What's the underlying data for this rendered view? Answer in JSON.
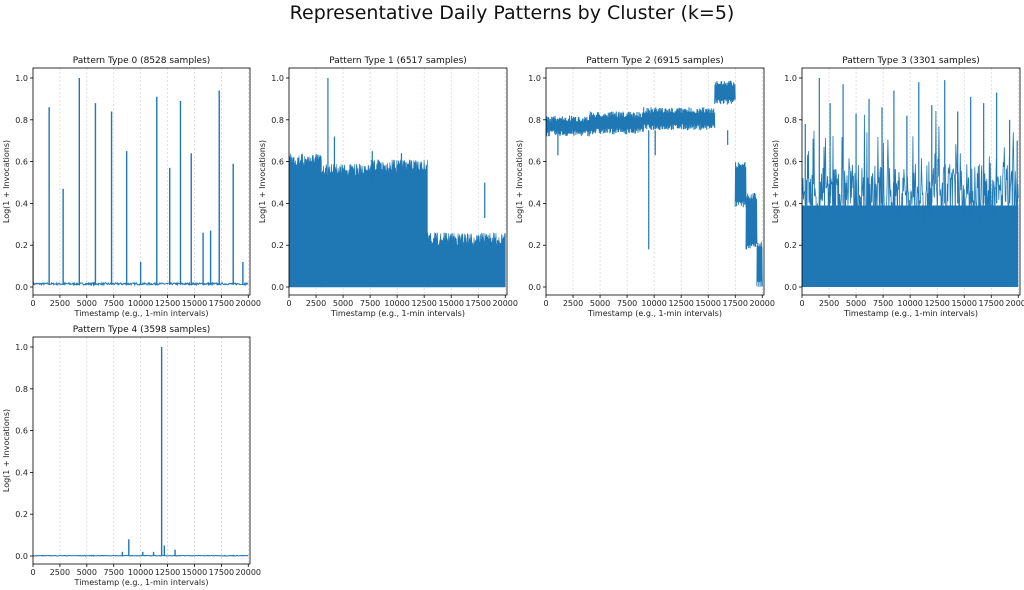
{
  "suptitle": "Representative Daily Patterns by Cluster (k=5)",
  "colors": {
    "line": "#1f77b4",
    "grid": "#cccccc",
    "axis": "#000000"
  },
  "chart_data": [
    {
      "type": "line",
      "title": "Pattern Type 0 (8528 samples)",
      "xlabel": "Timestamp (e.g., 1-min intervals)",
      "ylabel": "Log(1 + Invocations)",
      "xlim": [
        0,
        20160
      ],
      "ylim": [
        0,
        1.0
      ],
      "xticks": [
        0,
        2500,
        5000,
        7500,
        10000,
        12500,
        15000,
        17500,
        20000
      ],
      "yticks": [
        0.0,
        0.2,
        0.4,
        0.6,
        0.8,
        1.0
      ],
      "grid": "x-dotted",
      "pattern": "sparse-spikes",
      "baseline": 0.01,
      "noise": 0.01,
      "spikes": [
        {
          "x": 0,
          "y": 0.22
        },
        {
          "x": 1500,
          "y": 0.86
        },
        {
          "x": 2800,
          "y": 0.47
        },
        {
          "x": 4300,
          "y": 1.0
        },
        {
          "x": 5800,
          "y": 0.88
        },
        {
          "x": 7300,
          "y": 0.84
        },
        {
          "x": 8700,
          "y": 0.65
        },
        {
          "x": 10000,
          "y": 0.12
        },
        {
          "x": 11500,
          "y": 0.91
        },
        {
          "x": 12700,
          "y": 0.57
        },
        {
          "x": 13700,
          "y": 0.89
        },
        {
          "x": 14700,
          "y": 0.64
        },
        {
          "x": 15800,
          "y": 0.26
        },
        {
          "x": 16500,
          "y": 0.27
        },
        {
          "x": 17300,
          "y": 0.94
        },
        {
          "x": 18600,
          "y": 0.59
        },
        {
          "x": 19500,
          "y": 0.12
        }
      ]
    },
    {
      "type": "line",
      "title": "Pattern Type 1 (6517 samples)",
      "xlabel": "Timestamp (e.g., 1-min intervals)",
      "ylabel": "Log(1 + Invocations)",
      "xlim": [
        0,
        20160
      ],
      "ylim": [
        0,
        1.0
      ],
      "xticks": [
        0,
        2500,
        5000,
        7500,
        10000,
        12500,
        15000,
        17500,
        20000
      ],
      "yticks": [
        0.0,
        0.2,
        0.4,
        0.6,
        0.8,
        1.0
      ],
      "grid": "x-dotted",
      "pattern": "dense-band",
      "segments": [
        {
          "x0": 0,
          "x1": 3000,
          "top": 0.62
        },
        {
          "x0": 3000,
          "x1": 7600,
          "top": 0.57
        },
        {
          "x0": 7600,
          "x1": 12800,
          "top": 0.59
        },
        {
          "x0": 12800,
          "x1": 20000,
          "top": 0.24
        }
      ],
      "spikes": [
        {
          "x": 3600,
          "y": 1.0
        },
        {
          "x": 4200,
          "y": 0.72
        },
        {
          "x": 7700,
          "y": 0.65
        },
        {
          "x": 10400,
          "y": 0.64
        },
        {
          "x": 18100,
          "y": 0.33
        }
      ]
    },
    {
      "type": "line",
      "title": "Pattern Type 2 (6915 samples)",
      "xlabel": "Timestamp (e.g., 1-min intervals)",
      "ylabel": "Log(1 + Invocations)",
      "xlim": [
        0,
        20160
      ],
      "ylim": [
        0,
        1.0
      ],
      "xticks": [
        0,
        2500,
        5000,
        7500,
        10000,
        12500,
        15000,
        17500,
        20000
      ],
      "yticks": [
        0.0,
        0.2,
        0.4,
        0.6,
        0.8,
        1.0
      ],
      "grid": "x-dotted",
      "pattern": "level-band",
      "segments": [
        {
          "x0": 0,
          "x1": 4000,
          "lo": 0.72,
          "hi": 0.82
        },
        {
          "x0": 4000,
          "x1": 9000,
          "lo": 0.73,
          "hi": 0.84
        },
        {
          "x0": 9000,
          "x1": 15600,
          "lo": 0.75,
          "hi": 0.86
        },
        {
          "x0": 15600,
          "x1": 17500,
          "lo": 0.87,
          "hi": 0.99
        },
        {
          "x0": 17500,
          "x1": 18500,
          "lo": 0.38,
          "hi": 0.6
        },
        {
          "x0": 18500,
          "x1": 19500,
          "lo": 0.18,
          "hi": 0.45
        },
        {
          "x0": 19500,
          "x1": 20000,
          "lo": 0.0,
          "hi": 0.22
        }
      ],
      "dips": [
        {
          "x": 1100,
          "y": 0.63
        },
        {
          "x": 9500,
          "y": 0.18
        },
        {
          "x": 10100,
          "y": 0.63
        },
        {
          "x": 16800,
          "y": 0.68
        }
      ]
    },
    {
      "type": "line",
      "title": "Pattern Type 3 (3301 samples)",
      "xlabel": "Timestamp (e.g., 1-min intervals)",
      "ylabel": "Log(1 + Invocations)",
      "xlim": [
        0,
        20160
      ],
      "ylim": [
        0,
        1.0
      ],
      "xticks": [
        0,
        2500,
        5000,
        7500,
        10000,
        12500,
        15000,
        17500,
        20000
      ],
      "yticks": [
        0.0,
        0.2,
        0.4,
        0.6,
        0.8,
        1.0
      ],
      "grid": "x-dotted",
      "pattern": "noisy-dense",
      "fillTop": 0.44,
      "spikes": [
        {
          "x": 300,
          "y": 0.78
        },
        {
          "x": 1600,
          "y": 1.0
        },
        {
          "x": 2600,
          "y": 0.88
        },
        {
          "x": 3800,
          "y": 0.97
        },
        {
          "x": 5000,
          "y": 0.83
        },
        {
          "x": 6200,
          "y": 0.9
        },
        {
          "x": 7400,
          "y": 0.86
        },
        {
          "x": 8500,
          "y": 0.94
        },
        {
          "x": 9700,
          "y": 0.82
        },
        {
          "x": 10800,
          "y": 0.98
        },
        {
          "x": 12000,
          "y": 0.87
        },
        {
          "x": 13200,
          "y": 0.99
        },
        {
          "x": 14400,
          "y": 0.84
        },
        {
          "x": 15600,
          "y": 0.91
        },
        {
          "x": 16800,
          "y": 0.88
        },
        {
          "x": 18000,
          "y": 0.93
        },
        {
          "x": 19200,
          "y": 0.8
        },
        {
          "x": 19900,
          "y": 0.7
        }
      ]
    },
    {
      "type": "line",
      "title": "Pattern Type 4 (3598 samples)",
      "xlabel": "Timestamp (e.g., 1-min intervals)",
      "ylabel": "Log(1 + Invocations)",
      "xlim": [
        0,
        20160
      ],
      "ylim": [
        0,
        1.0
      ],
      "xticks": [
        0,
        2500,
        5000,
        7500,
        10000,
        12500,
        15000,
        17500,
        20000
      ],
      "yticks": [
        0.0,
        0.2,
        0.4,
        0.6,
        0.8,
        1.0
      ],
      "grid": "x-dotted",
      "pattern": "sparse-spikes",
      "baseline": 0.0,
      "noise": 0.003,
      "spikes": [
        {
          "x": 8300,
          "y": 0.02
        },
        {
          "x": 8900,
          "y": 0.08
        },
        {
          "x": 10200,
          "y": 0.02
        },
        {
          "x": 11200,
          "y": 0.02
        },
        {
          "x": 11950,
          "y": 1.0
        },
        {
          "x": 12200,
          "y": 0.05
        },
        {
          "x": 13200,
          "y": 0.03
        }
      ]
    }
  ]
}
